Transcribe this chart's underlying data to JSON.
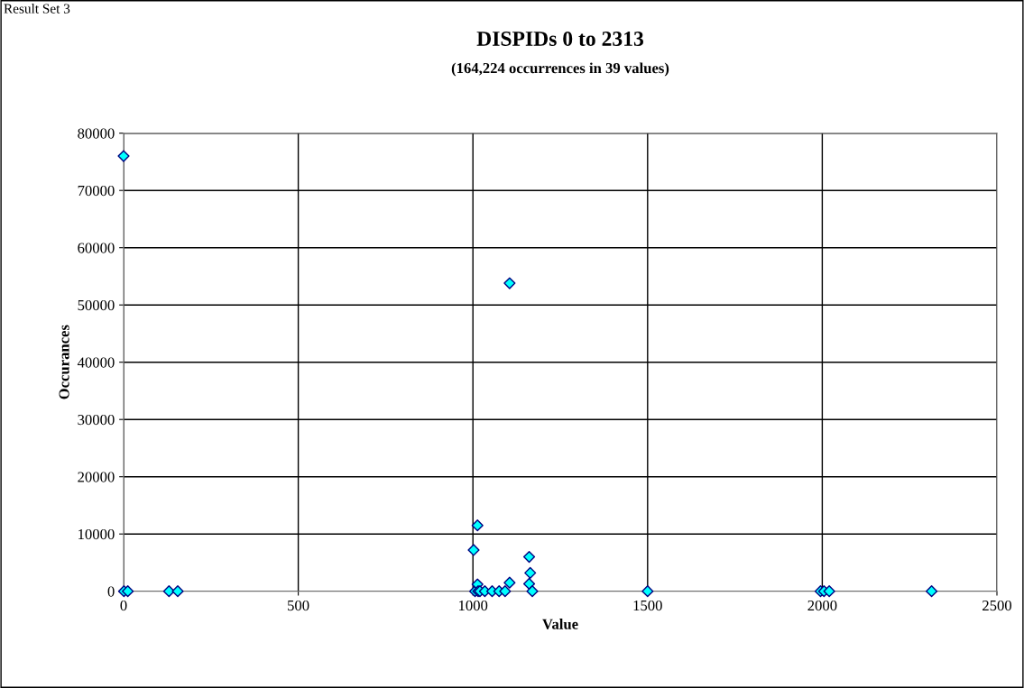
{
  "chart_data": {
    "type": "scatter",
    "title": "DISPIDs 0 to 2313",
    "subtitle": "(164,224 occurrences in 39 values)",
    "xlabel": "Value",
    "ylabel": "Occurances",
    "annotations": [
      "Result Set 3"
    ],
    "series": [
      {
        "color": "#00ffff",
        "x": [
          0,
          1,
          12,
          130,
          155,
          1002,
          1006,
          1013,
          1013,
          1015,
          1020,
          1034,
          1055,
          1075,
          1092,
          1105,
          1105,
          1161,
          1161,
          1164,
          1170,
          1500,
          1995,
          2005,
          2020,
          2313
        ],
        "values": [
          76000,
          0,
          0,
          0,
          0,
          7200,
          0,
          11500,
          1200,
          0,
          0,
          0,
          0,
          0,
          0,
          1500,
          53800,
          6000,
          1300,
          3200,
          0,
          0,
          0,
          0,
          0,
          0
        ]
      }
    ],
    "xlim": [
      0,
      2500
    ],
    "xticks": [
      0,
      500,
      1000,
      1500,
      2000,
      2500
    ],
    "ylim": [
      0,
      80000
    ],
    "yticks": [
      0,
      10000,
      20000,
      30000,
      40000,
      50000,
      60000,
      70000,
      80000
    ],
    "grid": true,
    "marker": "diamond",
    "legend": false
  }
}
